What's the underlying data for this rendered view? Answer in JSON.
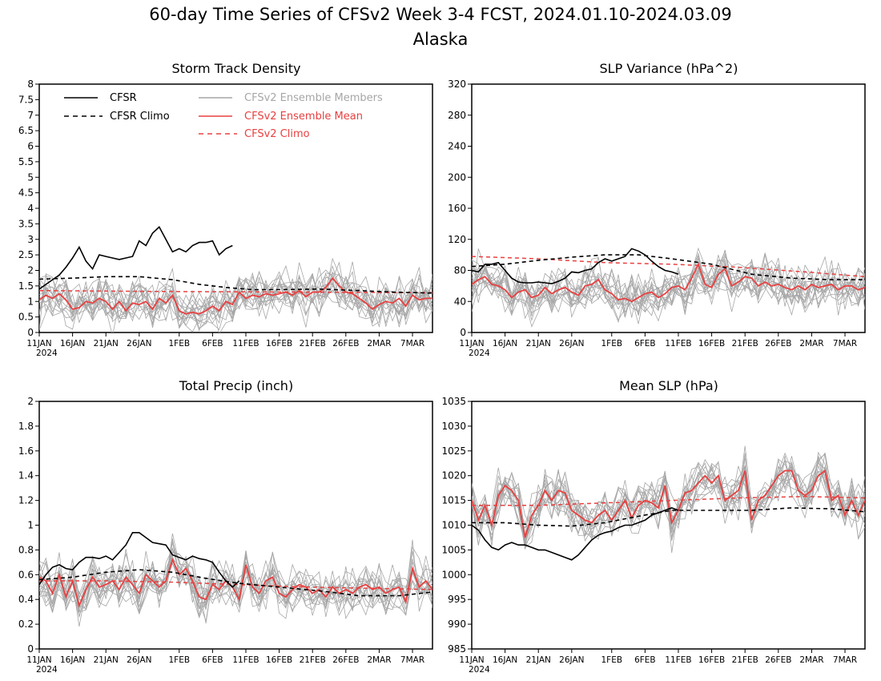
{
  "figure": {
    "title": "60-day Time Series of CFSv2 Week 3-4 FCST, 2024.01.10-2024.03.09",
    "subtitle": "Alaska"
  },
  "colors": {
    "cfsr": "#000000",
    "ensemble_member": "#a6a6a6",
    "ensemble_mean": "#e84040",
    "cfsv2_climo": "#e84040"
  },
  "legend": {
    "cfsr": "CFSR",
    "cfsr_climo": "CFSR Climo",
    "members": "CFSv2 Ensemble Members",
    "ens_mean": "CFSv2 Ensemble Mean",
    "cfsv2_climo": "CFSv2 Climo"
  },
  "x_axis": {
    "ticks": [
      {
        "day": 0,
        "label": "11JAN"
      },
      {
        "day": 5,
        "label": "16JAN"
      },
      {
        "day": 10,
        "label": "21JAN"
      },
      {
        "day": 15,
        "label": "26JAN"
      },
      {
        "day": 21,
        "label": "1FEB"
      },
      {
        "day": 26,
        "label": "6FEB"
      },
      {
        "day": 31,
        "label": "11FEB"
      },
      {
        "day": 36,
        "label": "16FEB"
      },
      {
        "day": 41,
        "label": "21FEB"
      },
      {
        "day": 46,
        "label": "26FEB"
      },
      {
        "day": 51,
        "label": "2MAR"
      },
      {
        "day": 56,
        "label": "7MAR"
      }
    ],
    "year_label": "2024",
    "range": [
      0,
      59
    ]
  },
  "chart_data": [
    {
      "type": "line",
      "title": "Storm Track Density",
      "ylim": [
        0,
        8
      ],
      "yticks": [
        "0",
        "0.5",
        "1",
        "1.5",
        "2",
        "2.5",
        "3",
        "3.5",
        "4",
        "4.5",
        "5",
        "5.5",
        "6",
        "6.5",
        "7",
        "7.5",
        "8"
      ],
      "series": {
        "cfsr": {
          "x": [
            0,
            2,
            3,
            4,
            5,
            6,
            7,
            8,
            9,
            10,
            11,
            12,
            13,
            14,
            15,
            16,
            17,
            18,
            19,
            20,
            21,
            22,
            23,
            24,
            25,
            26,
            27,
            28,
            29
          ],
          "y": [
            1.4,
            1.7,
            1.85,
            2.1,
            2.4,
            2.75,
            2.3,
            2.05,
            2.5,
            2.45,
            2.4,
            2.35,
            2.4,
            2.45,
            2.95,
            2.8,
            3.2,
            3.4,
            3.0,
            2.6,
            2.7,
            2.6,
            2.8,
            2.9,
            2.9,
            2.95,
            2.5,
            2.7,
            2.8
          ]
        },
        "cfsr_climo": {
          "x": [
            0,
            5,
            10,
            15,
            20,
            24,
            28,
            32,
            36,
            42,
            48,
            53,
            59
          ],
          "y": [
            1.72,
            1.75,
            1.8,
            1.8,
            1.7,
            1.55,
            1.45,
            1.38,
            1.38,
            1.4,
            1.35,
            1.3,
            1.27
          ]
        },
        "ens_mean": {
          "x": [
            0,
            1,
            2,
            3,
            4,
            5,
            6,
            7,
            8,
            9,
            10,
            11,
            12,
            13,
            14,
            15,
            16,
            17,
            18,
            19,
            20,
            21,
            22,
            23,
            24,
            25,
            26,
            27,
            28,
            29,
            30,
            31,
            32,
            33,
            34,
            35,
            36,
            37,
            38,
            39,
            40,
            41,
            42,
            43,
            44,
            45,
            46,
            47,
            48,
            49,
            50,
            51,
            52,
            53,
            54,
            55,
            56,
            57,
            58,
            59
          ],
          "y": [
            1.05,
            1.2,
            1.1,
            1.25,
            1.05,
            0.75,
            0.8,
            1.0,
            0.95,
            1.1,
            1.0,
            0.75,
            1.0,
            0.7,
            0.95,
            0.9,
            1.0,
            0.75,
            1.1,
            0.95,
            1.2,
            0.7,
            0.6,
            0.65,
            0.6,
            0.7,
            0.85,
            0.7,
            1.0,
            0.9,
            1.3,
            1.1,
            1.2,
            1.15,
            1.25,
            1.2,
            1.25,
            1.3,
            1.2,
            1.35,
            1.15,
            1.3,
            1.3,
            1.45,
            1.75,
            1.5,
            1.3,
            1.25,
            1.1,
            0.95,
            0.75,
            0.9,
            1.0,
            0.95,
            1.1,
            0.85,
            1.2,
            1.05,
            1.1,
            1.1
          ]
        },
        "cfsv2_climo": {
          "x": [
            0,
            20,
            40,
            59
          ],
          "y": [
            1.35,
            1.32,
            1.3,
            1.28
          ]
        }
      },
      "members": {
        "count": 16,
        "seed": 11
      }
    },
    {
      "type": "line",
      "title": "SLP Variance (hPa^2)",
      "ylim": [
        0,
        320
      ],
      "yticks": [
        "0",
        "40",
        "80",
        "120",
        "160",
        "200",
        "240",
        "280",
        "320"
      ],
      "series": {
        "cfsr": {
          "x": [
            0,
            1,
            2,
            3,
            4,
            5,
            6,
            7,
            8,
            9,
            10,
            11,
            12,
            13,
            14,
            15,
            16,
            17,
            18,
            19,
            20,
            21,
            22,
            23,
            24,
            25,
            26,
            27,
            28,
            29,
            30,
            31
          ],
          "y": [
            80,
            78,
            88,
            88,
            90,
            80,
            70,
            65,
            64,
            64,
            65,
            64,
            63,
            66,
            70,
            78,
            77,
            80,
            82,
            90,
            95,
            92,
            95,
            98,
            108,
            105,
            100,
            92,
            85,
            80,
            78,
            75
          ]
        },
        "cfsr_climo": {
          "x": [
            0,
            5,
            10,
            15,
            20,
            25,
            30,
            36,
            42,
            48,
            54,
            59
          ],
          "y": [
            85,
            88,
            93,
            97,
            100,
            100,
            95,
            88,
            75,
            70,
            68,
            68
          ]
        },
        "ens_mean": {
          "x": [
            0,
            1,
            2,
            3,
            4,
            5,
            6,
            7,
            8,
            9,
            10,
            11,
            12,
            13,
            14,
            15,
            16,
            17,
            18,
            19,
            20,
            21,
            22,
            23,
            24,
            25,
            26,
            27,
            28,
            29,
            30,
            31,
            32,
            33,
            34,
            35,
            36,
            37,
            38,
            39,
            40,
            41,
            42,
            43,
            44,
            45,
            46,
            47,
            48,
            49,
            50,
            51,
            52,
            53,
            54,
            55,
            56,
            57,
            58,
            59
          ],
          "y": [
            62,
            68,
            72,
            62,
            60,
            55,
            45,
            52,
            55,
            45,
            48,
            58,
            50,
            55,
            58,
            52,
            48,
            60,
            62,
            68,
            55,
            50,
            42,
            44,
            40,
            45,
            50,
            52,
            45,
            50,
            58,
            60,
            55,
            70,
            88,
            62,
            58,
            75,
            82,
            60,
            65,
            72,
            70,
            60,
            65,
            60,
            62,
            58,
            55,
            60,
            55,
            62,
            58,
            60,
            62,
            55,
            60,
            60,
            55,
            58
          ]
        },
        "cfsv2_climo": {
          "x": [
            0,
            10,
            20,
            30,
            40,
            50,
            59
          ],
          "y": [
            98,
            95,
            90,
            88,
            84,
            78,
            72
          ]
        }
      },
      "members": {
        "count": 16,
        "seed": 23
      }
    },
    {
      "type": "line",
      "title": "Total Precip (inch)",
      "ylim": [
        0,
        2
      ],
      "yticks": [
        "0",
        "0.2",
        "0.4",
        "0.6",
        "0.8",
        "1",
        "1.2",
        "1.4",
        "1.6",
        "1.8",
        "2"
      ],
      "series": {
        "cfsr": {
          "x": [
            0,
            1,
            2,
            3,
            4,
            5,
            6,
            7,
            8,
            9,
            10,
            11,
            12,
            13,
            14,
            15,
            16,
            17,
            18,
            19,
            20,
            21,
            22,
            23,
            24,
            25,
            26,
            27,
            28,
            29,
            30
          ],
          "y": [
            0.52,
            0.6,
            0.66,
            0.68,
            0.65,
            0.64,
            0.7,
            0.74,
            0.74,
            0.73,
            0.75,
            0.72,
            0.78,
            0.84,
            0.94,
            0.94,
            0.9,
            0.86,
            0.85,
            0.84,
            0.76,
            0.74,
            0.72,
            0.75,
            0.73,
            0.72,
            0.7,
            0.62,
            0.55,
            0.5,
            0.55
          ]
        },
        "cfsr_climo": {
          "x": [
            0,
            5,
            10,
            15,
            20,
            25,
            30,
            36,
            42,
            48,
            54,
            59
          ],
          "y": [
            0.56,
            0.58,
            0.62,
            0.64,
            0.62,
            0.57,
            0.53,
            0.5,
            0.47,
            0.43,
            0.43,
            0.46
          ]
        },
        "ens_mean": {
          "x": [
            0,
            1,
            2,
            3,
            4,
            5,
            6,
            7,
            8,
            9,
            10,
            11,
            12,
            13,
            14,
            15,
            16,
            17,
            18,
            19,
            20,
            21,
            22,
            23,
            24,
            25,
            26,
            27,
            28,
            29,
            30,
            31,
            32,
            33,
            34,
            35,
            36,
            37,
            38,
            39,
            40,
            41,
            42,
            43,
            44,
            45,
            46,
            47,
            48,
            49,
            50,
            51,
            52,
            53,
            54,
            55,
            56,
            57,
            58,
            59
          ],
          "y": [
            0.58,
            0.55,
            0.45,
            0.6,
            0.42,
            0.55,
            0.35,
            0.48,
            0.58,
            0.5,
            0.52,
            0.55,
            0.48,
            0.58,
            0.52,
            0.45,
            0.6,
            0.55,
            0.5,
            0.55,
            0.72,
            0.6,
            0.65,
            0.55,
            0.42,
            0.4,
            0.52,
            0.48,
            0.55,
            0.5,
            0.4,
            0.68,
            0.5,
            0.45,
            0.55,
            0.58,
            0.45,
            0.42,
            0.48,
            0.52,
            0.5,
            0.45,
            0.48,
            0.42,
            0.5,
            0.45,
            0.48,
            0.45,
            0.5,
            0.52,
            0.48,
            0.5,
            0.45,
            0.48,
            0.5,
            0.38,
            0.65,
            0.5,
            0.55,
            0.48
          ]
        },
        "cfsv2_climo": {
          "x": [
            0,
            10,
            20,
            30,
            40,
            50,
            59
          ],
          "y": [
            0.55,
            0.55,
            0.54,
            0.52,
            0.5,
            0.49,
            0.48
          ]
        }
      },
      "members": {
        "count": 16,
        "seed": 37
      }
    },
    {
      "type": "line",
      "title": "Mean SLP (hPa)",
      "ylim": [
        985,
        1035
      ],
      "yticks": [
        "985",
        "990",
        "995",
        "1000",
        "1005",
        "1010",
        "1015",
        "1020",
        "1025",
        "1030",
        "1035"
      ],
      "series": {
        "cfsr": {
          "x": [
            0,
            1,
            2,
            3,
            4,
            5,
            6,
            7,
            8,
            9,
            10,
            11,
            12,
            13,
            14,
            15,
            16,
            17,
            18,
            19,
            20,
            21,
            22,
            23,
            24,
            25,
            26,
            27,
            28,
            29,
            30,
            31
          ],
          "y": [
            1010,
            1009,
            1007,
            1005.5,
            1005,
            1006,
            1006.5,
            1006,
            1006,
            1005.5,
            1005,
            1005,
            1004.5,
            1004,
            1003.5,
            1003,
            1004,
            1005.5,
            1007,
            1008,
            1008.5,
            1008.8,
            1009.5,
            1010,
            1010,
            1010.5,
            1011,
            1012,
            1012.5,
            1013,
            1013.5,
            1013
          ]
        },
        "cfsr_climo": {
          "x": [
            0,
            5,
            10,
            15,
            20,
            25,
            30,
            36,
            42,
            48,
            54,
            59
          ],
          "y": [
            1010.5,
            1010.5,
            1010,
            1009.8,
            1010.5,
            1011.8,
            1013,
            1013,
            1013,
            1013.5,
            1013.3,
            1012.7
          ]
        },
        "ens_mean": {
          "x": [
            0,
            1,
            2,
            3,
            4,
            5,
            6,
            7,
            8,
            9,
            10,
            11,
            12,
            13,
            14,
            15,
            16,
            17,
            18,
            19,
            20,
            21,
            22,
            23,
            24,
            25,
            26,
            27,
            28,
            29,
            30,
            31,
            32,
            33,
            34,
            35,
            36,
            37,
            38,
            39,
            40,
            41,
            42,
            43,
            44,
            45,
            46,
            47,
            48,
            49,
            50,
            51,
            52,
            53,
            54,
            55,
            56,
            57,
            58,
            59
          ],
          "y": [
            1015,
            1011,
            1014,
            1010,
            1016,
            1018,
            1017,
            1015,
            1007.5,
            1012,
            1014,
            1017,
            1015,
            1017,
            1016.5,
            1013,
            1012,
            1011,
            1010.5,
            1012,
            1013,
            1011,
            1013,
            1015,
            1011.5,
            1014,
            1015,
            1014.5,
            1013.5,
            1018,
            1010.5,
            1013,
            1016.5,
            1017,
            1018.5,
            1020,
            1018.5,
            1020,
            1015,
            1016,
            1017,
            1021,
            1011,
            1015,
            1016,
            1018,
            1020,
            1021,
            1021,
            1017,
            1016,
            1017,
            1020,
            1021,
            1015,
            1016,
            1012,
            1015,
            1012,
            1015
          ]
        },
        "cfsv2_climo": {
          "x": [
            0,
            10,
            20,
            30,
            40,
            50,
            59
          ],
          "y": [
            1014,
            1014,
            1014.5,
            1015,
            1015.5,
            1015.8,
            1015.5
          ]
        }
      },
      "members": {
        "count": 16,
        "seed": 53
      }
    }
  ]
}
